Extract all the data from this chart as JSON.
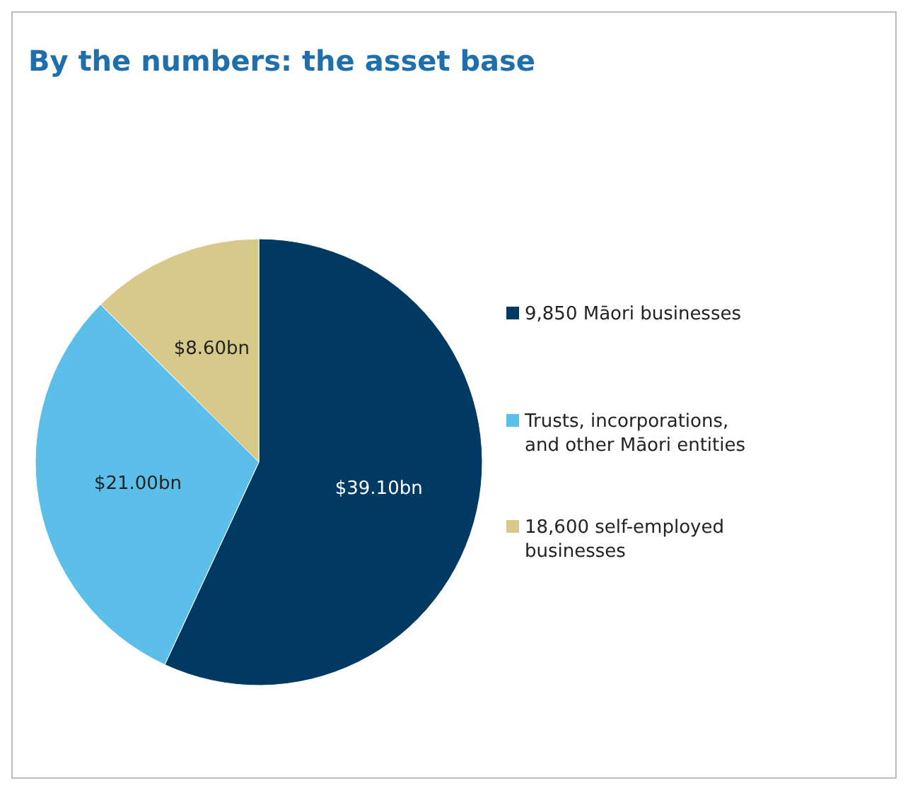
{
  "chart_data": {
    "type": "pie",
    "title": "By the numbers: the asset base",
    "categories": [
      "9,850 Māori businesses",
      "Trusts, incorporations, and other Māori entities",
      "18,600 self-employed businesses"
    ],
    "values": [
      39.1,
      21.0,
      8.6
    ],
    "value_labels": [
      "$39.10bn",
      "$21.00bn",
      "$8.60bn"
    ],
    "colors": [
      "#003a63",
      "#5bbfea",
      "#d6c98a"
    ],
    "legend": "right"
  }
}
